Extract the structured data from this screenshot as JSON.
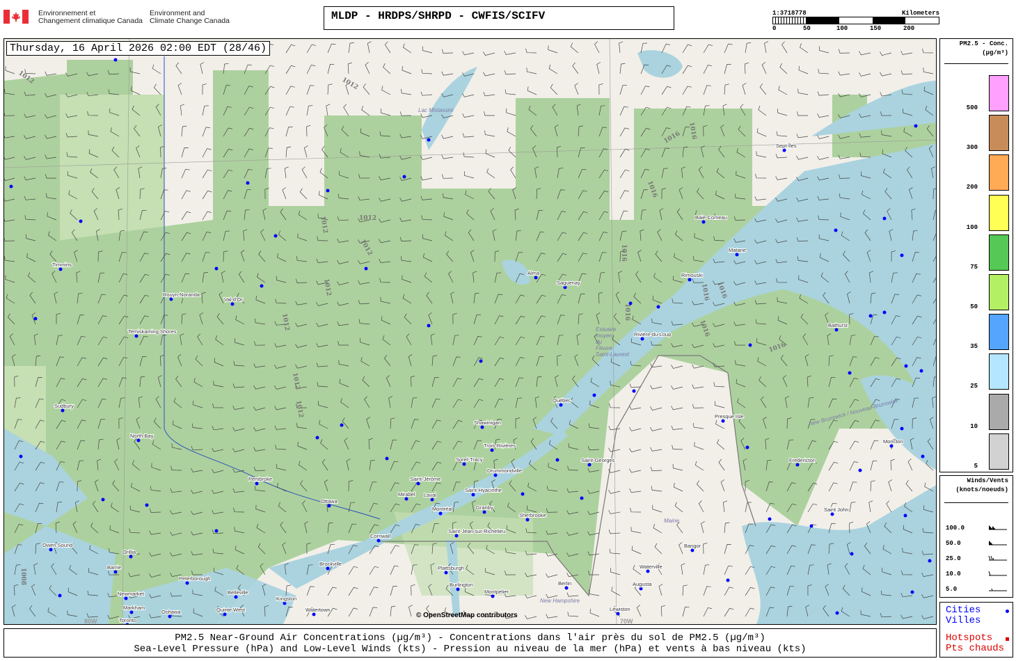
{
  "header": {
    "agency_fr": [
      "Environnement et",
      "Changement climatique Canada"
    ],
    "agency_en": [
      "Environment and",
      "Climate Change Canada"
    ],
    "title": "MLDP - HRDPS/SHRPD - CWFIS/SCIFV"
  },
  "scale": {
    "ratio": "1:3718778",
    "unit": "Kilometers",
    "ticks": [
      "0",
      "50",
      "100",
      "150",
      "200"
    ]
  },
  "map": {
    "datetime": "Thursday, 16 April 2026 02:00 EDT (28/46)",
    "attribution": "© OpenStreetMap contributors",
    "colors": {
      "land": "#f2efe9",
      "forest": "#add19e",
      "forest_light": "#c6dfb3",
      "water": "#aad3df",
      "city_dot": "#0000ff",
      "isobar": "#777777"
    },
    "cities": [
      "Timmins",
      "Rouyn-Noranda",
      "Val-d'Or",
      "Temiskaming Shores",
      "Sudbury",
      "North Bay",
      "Pembroke",
      "Ottawa",
      "Owen Sound",
      "Orillia",
      "Barrie",
      "Peterborough",
      "Newmarket",
      "Markham",
      "Toronto",
      "Oshawa",
      "Belleville",
      "Quinte West",
      "Kingston",
      "Brockville",
      "Cornwall",
      "Watertown",
      "Plattsburgh",
      "Burlington",
      "Montpelier",
      "Saint-Jérôme",
      "Mirabel",
      "Laval",
      "Montréal",
      "Saint-Jean-sur-Richelieu",
      "Sorel-Tracy",
      "Drummondville",
      "Saint-Hyacinthe",
      "Granby",
      "Sherbrooke",
      "Trois-Rivières",
      "Shawinigan",
      "Québec",
      "Saint-Georges",
      "Alma",
      "Saguenay",
      "Baie-Comeau",
      "Sept-Îles",
      "Matane",
      "Rimouski",
      "Rivière-du-Loup",
      "Bathurst",
      "Presque Isle",
      "Fredericton",
      "Moncton",
      "Saint John",
      "Bangor",
      "Waterville",
      "Augusta",
      "Lewiston",
      "Berlin"
    ],
    "regions": [
      "Lac Mistassini",
      "Maine",
      "New Brunswick / Nouveau-Brunswick",
      "New Hampshire",
      "Estuaire moyen du Fleuve Saint-Laurent"
    ],
    "isobar_labels": [
      "1012",
      "1012",
      "1012",
      "1012",
      "1012",
      "1012",
      "1012",
      "1012",
      "1012",
      "1016",
      "1016",
      "1016",
      "1016",
      "1016",
      "1016",
      "1016",
      "1016",
      "1016",
      "1008"
    ],
    "graticule_labels": [
      "80W",
      "70W"
    ]
  },
  "pm_legend": {
    "title": "PM2.5 - Conc.",
    "unit": "(µg/m³)",
    "bins": [
      {
        "label": "500",
        "color": "#ffa0ff"
      },
      {
        "label": "300",
        "color": "#c88c5a"
      },
      {
        "label": "200",
        "color": "#ffaa55"
      },
      {
        "label": "100",
        "color": "#ffff55"
      },
      {
        "label": "75",
        "color": "#55c855"
      },
      {
        "label": "50",
        "color": "#b4f064"
      },
      {
        "label": "35",
        "color": "#55a5ff"
      },
      {
        "label": "25",
        "color": "#b4e6ff"
      },
      {
        "label": "10",
        "color": "#aaaaaa"
      },
      {
        "label": "5",
        "color": "#d2d2d2"
      }
    ]
  },
  "wind_legend": {
    "title": "Winds/Vents",
    "unit": "(knots/noeuds)",
    "speeds": [
      "100.0",
      "50.0",
      "25.0",
      "10.0",
      "5.0"
    ]
  },
  "markers_legend": {
    "cities": [
      "Cities",
      "Villes"
    ],
    "hotspots": [
      "Hotspots",
      "Pts chauds"
    ],
    "cities_color": "#0000ff",
    "hotspots_color": "#dd0000"
  },
  "caption": {
    "line1": "PM2.5 Near-Ground Air Concentrations (µg/m³) - Concentrations dans l'air près du sol de PM2.5 (µg/m³)",
    "line2": "Sea-Level Pressure (hPa) and Low-Level Winds (kts) - Pression au niveau de la mer (hPa) et vents à bas niveau (kts)"
  }
}
